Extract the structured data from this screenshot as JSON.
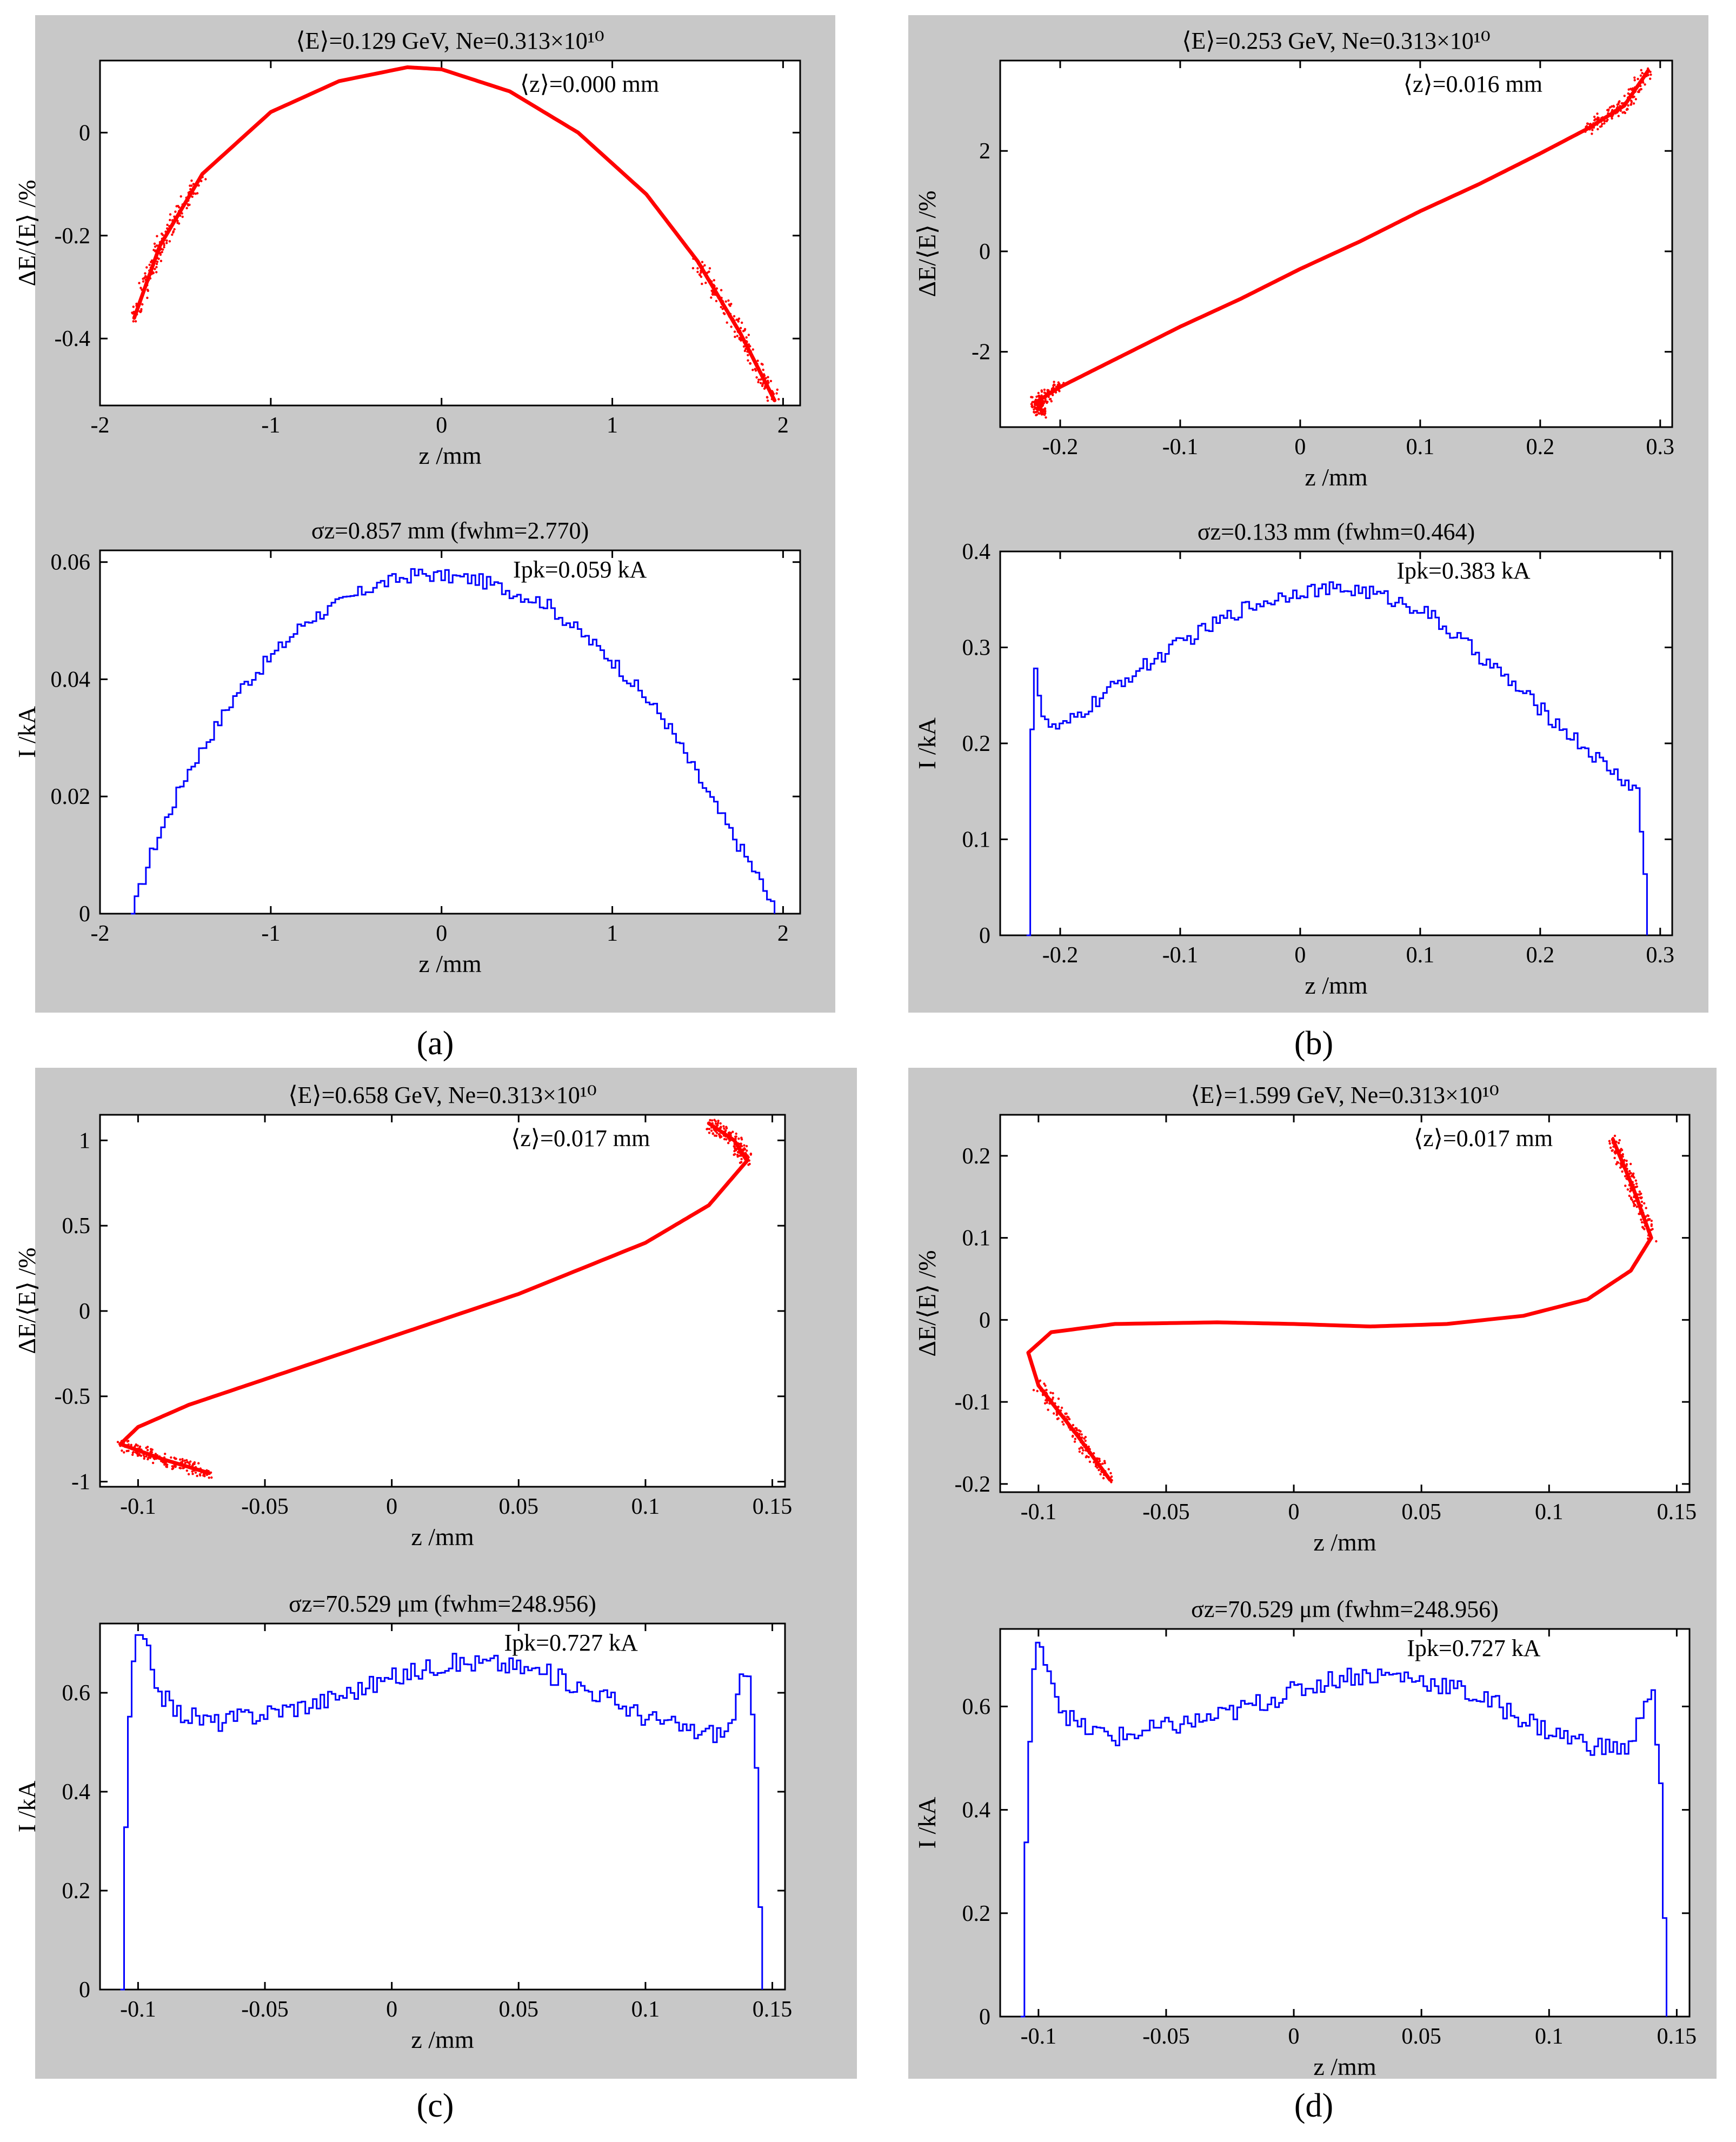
{
  "chart_data": [
    {
      "panel": "a",
      "caption": "(a)",
      "phase": {
        "type": "scatter",
        "title": "⟨E⟩=0.129 GeV, Ne=0.313×10¹⁰",
        "annotation": "⟨z⟩=0.000 mm",
        "xlabel": "z /mm",
        "ylabel": "ΔE/⟨E⟩ /%",
        "xlim": [
          -2,
          2.1
        ],
        "ylim": [
          -0.53,
          0.14
        ],
        "xticks": [
          -2,
          -1,
          0,
          1,
          2
        ],
        "xtick_labels": [
          "-2",
          "-1",
          "0",
          "1",
          "2"
        ],
        "yticks": [
          -0.4,
          -0.2,
          0
        ],
        "ytick_labels": [
          "-0.4",
          "-0.2",
          "0"
        ],
        "curve": [
          [
            -1.8,
            -0.36
          ],
          [
            -1.65,
            -0.22
          ],
          [
            -1.4,
            -0.08
          ],
          [
            -1.0,
            0.04
          ],
          [
            -0.6,
            0.1
          ],
          [
            -0.2,
            0.127
          ],
          [
            0.0,
            0.123
          ],
          [
            0.4,
            0.08
          ],
          [
            0.8,
            0.0
          ],
          [
            1.2,
            -0.12
          ],
          [
            1.5,
            -0.25
          ],
          [
            1.75,
            -0.39
          ],
          [
            1.95,
            -0.52
          ]
        ],
        "color": "#ff0000"
      },
      "current": {
        "type": "line",
        "title": "σz=0.857 mm (fwhm=2.770)",
        "annotation": "Ipk=0.059 kA",
        "xlabel": "z /mm",
        "ylabel": "I /kA",
        "xlim": [
          -2,
          2.1
        ],
        "ylim": [
          0,
          0.062
        ],
        "xticks": [
          -2,
          -1,
          0,
          1,
          2
        ],
        "xtick_labels": [
          "-2",
          "-1",
          "0",
          "1",
          "2"
        ],
        "yticks": [
          0,
          0.02,
          0.04,
          0.06
        ],
        "ytick_labels": [
          "0",
          "0.02",
          "0.04",
          "0.06"
        ],
        "profile": [
          [
            -1.82,
            0
          ],
          [
            -1.7,
            0.011
          ],
          [
            -1.5,
            0.024
          ],
          [
            -1.2,
            0.038
          ],
          [
            -0.8,
            0.05
          ],
          [
            -0.4,
            0.056
          ],
          [
            -0.15,
            0.058
          ],
          [
            0.2,
            0.057
          ],
          [
            0.6,
            0.053
          ],
          [
            1.0,
            0.043
          ],
          [
            1.3,
            0.033
          ],
          [
            1.6,
            0.018
          ],
          [
            1.85,
            0.006
          ],
          [
            1.95,
            0
          ]
        ],
        "noise": 0.0012,
        "color": "#0000ff"
      }
    },
    {
      "panel": "b",
      "caption": "(b)",
      "phase": {
        "type": "scatter",
        "title": "⟨E⟩=0.253 GeV, Ne=0.313×10¹⁰",
        "annotation": "⟨z⟩=0.016 mm",
        "xlabel": "z /mm",
        "ylabel": "ΔE/⟨E⟩ /%",
        "xlim": [
          -0.25,
          0.31
        ],
        "ylim": [
          -3.5,
          3.8
        ],
        "xticks": [
          -0.2,
          -0.1,
          0,
          0.1,
          0.2,
          0.3
        ],
        "xtick_labels": [
          "-0.2",
          "-0.1",
          "0",
          "0.1",
          "0.2",
          "0.3"
        ],
        "yticks": [
          -2,
          0,
          2
        ],
        "ytick_labels": [
          "-2",
          "0",
          "2"
        ],
        "curve": [
          [
            -0.215,
            -3.2
          ],
          [
            -0.22,
            -3.0
          ],
          [
            -0.2,
            -2.7
          ],
          [
            -0.15,
            -2.1
          ],
          [
            -0.1,
            -1.5
          ],
          [
            -0.05,
            -0.95
          ],
          [
            0,
            -0.35
          ],
          [
            0.05,
            0.2
          ],
          [
            0.1,
            0.8
          ],
          [
            0.15,
            1.35
          ],
          [
            0.2,
            1.95
          ],
          [
            0.24,
            2.45
          ],
          [
            0.27,
            2.9
          ],
          [
            0.29,
            3.6
          ]
        ],
        "color": "#ff0000"
      },
      "current": {
        "type": "line",
        "title": "σz=0.133 mm (fwhm=0.464)",
        "annotation": "Ipk=0.383 kA",
        "xlabel": "z /mm",
        "ylabel": "I /kA",
        "xlim": [
          -0.25,
          0.31
        ],
        "ylim": [
          0,
          0.4
        ],
        "xticks": [
          -0.2,
          -0.1,
          0,
          0.1,
          0.2,
          0.3
        ],
        "xtick_labels": [
          "-0.2",
          "-0.1",
          "0",
          "0.1",
          "0.2",
          "0.3"
        ],
        "yticks": [
          0,
          0.1,
          0.2,
          0.3,
          0.4
        ],
        "ytick_labels": [
          "0",
          "0.1",
          "0.2",
          "0.3",
          "0.4"
        ],
        "profile": [
          [
            -0.228,
            0
          ],
          [
            -0.226,
            0.2
          ],
          [
            -0.222,
            0.28
          ],
          [
            -0.215,
            0.22
          ],
          [
            -0.2,
            0.215
          ],
          [
            -0.15,
            0.265
          ],
          [
            -0.1,
            0.305
          ],
          [
            -0.05,
            0.34
          ],
          [
            0,
            0.36
          ],
          [
            0.05,
            0.36
          ],
          [
            0.1,
            0.34
          ],
          [
            0.15,
            0.29
          ],
          [
            0.2,
            0.235
          ],
          [
            0.25,
            0.18
          ],
          [
            0.28,
            0.15
          ],
          [
            0.287,
            0.05
          ],
          [
            0.289,
            0
          ]
        ],
        "noise": 0.008,
        "color": "#0000ff"
      }
    },
    {
      "panel": "c",
      "caption": "(c)",
      "phase": {
        "type": "scatter",
        "title": "⟨E⟩=0.658 GeV, Ne=0.313×10¹⁰",
        "annotation": "⟨z⟩=0.017 mm",
        "xlabel": "z /mm",
        "ylabel": "ΔE/⟨E⟩ /%",
        "xlim": [
          -0.115,
          0.155
        ],
        "ylim": [
          -1.03,
          1.15
        ],
        "xticks": [
          -0.1,
          -0.05,
          0,
          0.05,
          0.1,
          0.15
        ],
        "xtick_labels": [
          "-0.1",
          "-0.05",
          "0",
          "0.05",
          "0.1",
          "0.15"
        ],
        "yticks": [
          -1,
          -0.5,
          0,
          0.5,
          1
        ],
        "ytick_labels": [
          "-1",
          "-0.5",
          "0",
          "0.5",
          "1"
        ],
        "curve": [
          [
            -0.072,
            -0.95
          ],
          [
            -0.09,
            -0.87
          ],
          [
            -0.107,
            -0.78
          ],
          [
            -0.1,
            -0.68
          ],
          [
            -0.08,
            -0.55
          ],
          [
            -0.05,
            -0.4
          ],
          [
            0,
            -0.15
          ],
          [
            0.05,
            0.1
          ],
          [
            0.1,
            0.4
          ],
          [
            0.125,
            0.62
          ],
          [
            0.14,
            0.88
          ],
          [
            0.135,
            1.0
          ],
          [
            0.125,
            1.1
          ]
        ],
        "color": "#ff0000"
      },
      "current": {
        "type": "line",
        "title": "σz=70.529 μm (fwhm=248.956)",
        "annotation": "Ipk=0.727 kA",
        "xlabel": "z /mm",
        "ylabel": "I /kA",
        "xlim": [
          -0.115,
          0.155
        ],
        "ylim": [
          0,
          0.74
        ],
        "xticks": [
          -0.1,
          -0.05,
          0,
          0.05,
          0.1,
          0.15
        ],
        "xtick_labels": [
          "-0.1",
          "-0.05",
          "0",
          "0.05",
          "0.1",
          "0.15"
        ],
        "yticks": [
          0,
          0.2,
          0.4,
          0.6
        ],
        "ytick_labels": [
          "0",
          "0.2",
          "0.4",
          "0.6"
        ],
        "profile": [
          [
            -0.107,
            0
          ],
          [
            -0.105,
            0.45
          ],
          [
            -0.102,
            0.71
          ],
          [
            -0.098,
            0.7
          ],
          [
            -0.092,
            0.6
          ],
          [
            -0.085,
            0.56
          ],
          [
            -0.07,
            0.54
          ],
          [
            -0.05,
            0.56
          ],
          [
            -0.03,
            0.58
          ],
          [
            0,
            0.63
          ],
          [
            0.02,
            0.66
          ],
          [
            0.04,
            0.66
          ],
          [
            0.06,
            0.64
          ],
          [
            0.08,
            0.6
          ],
          [
            0.1,
            0.55
          ],
          [
            0.12,
            0.52
          ],
          [
            0.132,
            0.52
          ],
          [
            0.137,
            0.62
          ],
          [
            0.14,
            0.63
          ],
          [
            0.143,
            0.45
          ],
          [
            0.145,
            0.1
          ],
          [
            0.146,
            0
          ]
        ],
        "noise": 0.02,
        "color": "#0000ff"
      }
    },
    {
      "panel": "d",
      "caption": "(d)",
      "phase": {
        "type": "scatter",
        "title": "⟨E⟩=1.599 GeV, Ne=0.313×10¹⁰",
        "annotation": "⟨z⟩=0.017 mm",
        "xlabel": "z /mm",
        "ylabel": "ΔE/⟨E⟩ /%",
        "xlim": [
          -0.115,
          0.155
        ],
        "ylim": [
          -0.21,
          0.25
        ],
        "xticks": [
          -0.1,
          -0.05,
          0,
          0.05,
          0.1,
          0.15
        ],
        "xtick_labels": [
          "-0.1",
          "-0.05",
          "0",
          "0.05",
          "0.1",
          "0.15"
        ],
        "yticks": [
          -0.2,
          -0.1,
          0,
          0.1,
          0.2
        ],
        "ytick_labels": [
          "-0.2",
          "-0.1",
          "0",
          "0.1",
          "0.2"
        ],
        "curve": [
          [
            -0.072,
            -0.195
          ],
          [
            -0.085,
            -0.14
          ],
          [
            -0.1,
            -0.08
          ],
          [
            -0.104,
            -0.04
          ],
          [
            -0.095,
            -0.015
          ],
          [
            -0.07,
            -0.005
          ],
          [
            -0.03,
            -0.003
          ],
          [
            0,
            -0.005
          ],
          [
            0.03,
            -0.008
          ],
          [
            0.06,
            -0.005
          ],
          [
            0.09,
            0.005
          ],
          [
            0.115,
            0.025
          ],
          [
            0.132,
            0.06
          ],
          [
            0.14,
            0.1
          ],
          [
            0.133,
            0.16
          ],
          [
            0.125,
            0.22
          ]
        ],
        "color": "#ff0000"
      },
      "current": {
        "type": "line",
        "title": "σz=70.529 μm (fwhm=248.956)",
        "annotation": "Ipk=0.727 kA",
        "xlabel": "z /mm",
        "ylabel": "I /kA",
        "xlim": [
          -0.115,
          0.155
        ],
        "ylim": [
          0,
          0.75
        ],
        "xticks": [
          -0.1,
          -0.05,
          0,
          0.05,
          0.1,
          0.15
        ],
        "xtick_labels": [
          "-0.1",
          "-0.05",
          "0",
          "0.05",
          "0.1",
          "0.15"
        ],
        "yticks": [
          0,
          0.2,
          0.4,
          0.6
        ],
        "ytick_labels": [
          "0",
          "0.2",
          "0.4",
          "0.6"
        ],
        "profile": [
          [
            -0.107,
            0
          ],
          [
            -0.105,
            0.45
          ],
          [
            -0.102,
            0.71
          ],
          [
            -0.098,
            0.7
          ],
          [
            -0.092,
            0.6
          ],
          [
            -0.085,
            0.56
          ],
          [
            -0.07,
            0.54
          ],
          [
            -0.05,
            0.56
          ],
          [
            -0.03,
            0.58
          ],
          [
            0,
            0.63
          ],
          [
            0.02,
            0.66
          ],
          [
            0.04,
            0.66
          ],
          [
            0.06,
            0.64
          ],
          [
            0.08,
            0.6
          ],
          [
            0.1,
            0.55
          ],
          [
            0.12,
            0.52
          ],
          [
            0.132,
            0.52
          ],
          [
            0.137,
            0.62
          ],
          [
            0.14,
            0.63
          ],
          [
            0.143,
            0.45
          ],
          [
            0.145,
            0.1
          ],
          [
            0.146,
            0
          ]
        ],
        "noise": 0.02,
        "color": "#0000ff"
      }
    }
  ]
}
